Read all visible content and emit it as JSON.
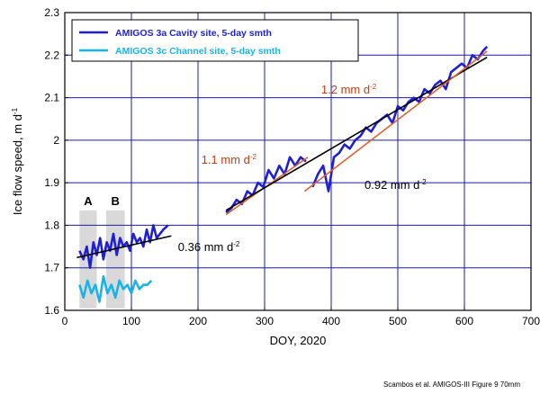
{
  "chart_data": {
    "type": "line",
    "xlabel": "DOY, 2020",
    "ylabel": "Ice flow speed, m d",
    "ylabel_sup": "-1",
    "xlim": [
      0,
      700
    ],
    "ylim": [
      1.6,
      2.3
    ],
    "xticks": [
      0,
      100,
      200,
      300,
      400,
      500,
      600,
      700
    ],
    "yticks": [
      1.6,
      1.7,
      1.8,
      1.9,
      2.0,
      2.1,
      2.2,
      2.3
    ],
    "xtick_labels": [
      "0",
      "100",
      "200",
      "300",
      "400",
      "500",
      "600",
      "700"
    ],
    "ytick_labels": [
      "1.6",
      "1.7",
      "1.8",
      "1.9",
      "2",
      "2.1",
      "2.2",
      "2.3"
    ],
    "grid": true,
    "legend_position": "top-left",
    "series": [
      {
        "name": "AMIGOS 3a Cavity site, 5-day smth",
        "color": "#1f1fd6",
        "segments": [
          {
            "x": [
              22,
              28,
              33,
              38,
              43,
              48,
              53,
              58,
              63,
              68,
              73,
              78,
              83,
              88,
              93,
              98,
              103,
              108,
              113,
              118,
              123,
              128,
              133,
              138,
              143,
              148,
              155
            ],
            "y": [
              1.74,
              1.72,
              1.75,
              1.7,
              1.76,
              1.73,
              1.77,
              1.72,
              1.76,
              1.74,
              1.78,
              1.73,
              1.77,
              1.75,
              1.76,
              1.74,
              1.78,
              1.76,
              1.77,
              1.75,
              1.79,
              1.76,
              1.8,
              1.77,
              1.78,
              1.79,
              1.8
            ]
          },
          {
            "x": [
              242,
              250,
              258,
              266,
              274,
              282,
              290,
              298,
              306,
              314,
              322,
              330,
              338,
              346,
              354,
              362
            ],
            "y": [
              1.83,
              1.84,
              1.86,
              1.85,
              1.88,
              1.87,
              1.9,
              1.89,
              1.93,
              1.91,
              1.94,
              1.92,
              1.96,
              1.94,
              1.96,
              1.95
            ]
          },
          {
            "x": [
              372,
              380,
              388,
              396,
              404,
              412,
              420,
              428,
              436,
              444,
              452,
              460,
              468,
              476,
              484,
              492,
              500,
              508,
              516,
              524,
              532,
              540,
              548,
              556,
              564,
              572,
              580,
              588,
              596,
              604,
              612,
              620,
              628,
              634
            ],
            "y": [
              1.89,
              1.92,
              1.94,
              1.88,
              1.96,
              1.97,
              1.99,
              1.98,
              2.0,
              2.01,
              2.03,
              2.02,
              2.04,
              2.05,
              2.06,
              2.04,
              2.08,
              2.07,
              2.09,
              2.1,
              2.09,
              2.12,
              2.11,
              2.13,
              2.14,
              2.12,
              2.16,
              2.17,
              2.18,
              2.17,
              2.2,
              2.19,
              2.21,
              2.22
            ]
          }
        ]
      },
      {
        "name": "AMIGOS 3c Channel site, 5-day smth",
        "color": "#19b4e6",
        "segments": [
          {
            "x": [
              22,
              28,
              34,
              40,
              46,
              52,
              58,
              64,
              70,
              76,
              82,
              88,
              94,
              100,
              106,
              112,
              118,
              124,
              130
            ],
            "y": [
              1.66,
              1.63,
              1.67,
              1.64,
              1.66,
              1.62,
              1.68,
              1.64,
              1.66,
              1.63,
              1.67,
              1.65,
              1.66,
              1.64,
              1.67,
              1.65,
              1.66,
              1.66,
              1.67
            ]
          }
        ]
      }
    ],
    "trend_lines": [
      {
        "label": "0.36 mm d",
        "label_sup": "-2",
        "color": "#000000",
        "label_color": "#000000",
        "label_at": [
          170,
          1.74
        ],
        "x": [
          18,
          160
        ],
        "y": [
          1.724,
          1.775
        ]
      },
      {
        "label": "1.1 mm d",
        "label_sup": "-2",
        "color": "#e0602a",
        "label_color": "#cc3a10",
        "label_at": [
          205,
          1.945
        ],
        "x": [
          242,
          365
        ],
        "y": [
          1.825,
          1.96
        ]
      },
      {
        "label": "0.92 mm d",
        "label_sup": "-2",
        "color": "#000000",
        "label_color": "#000000",
        "label_at": [
          450,
          1.885
        ],
        "x": [
          242,
          634
        ],
        "y": [
          1.835,
          2.195
        ]
      },
      {
        "label": "1.2 mm d",
        "label_sup": "-2",
        "color": "#e0602a",
        "label_color": "#cc3a10",
        "label_at": [
          385,
          2.11
        ],
        "x": [
          360,
          634
        ],
        "y": [
          1.88,
          2.209
        ]
      }
    ],
    "shaded_periods": [
      {
        "label": "A",
        "x": [
          22,
          48
        ]
      },
      {
        "label": "B",
        "x": [
          62,
          90
        ]
      }
    ],
    "credit": "Scambos et al.  AMIGOS-III  Figure 9 70mm"
  }
}
